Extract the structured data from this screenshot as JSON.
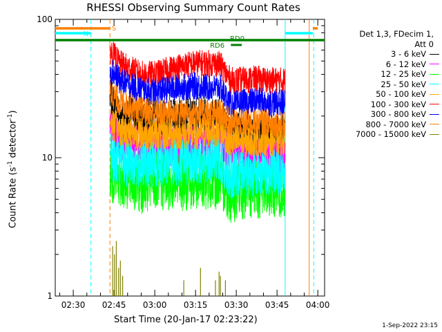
{
  "chart_data": {
    "type": "line",
    "title": "RHESSI Observing Summary Count Rates",
    "xlabel": "Start Time (20-Jan-17 02:23:22)",
    "ylabel_main": "Count Rate (s",
    "ylabel_sup1": "-1",
    "ylabel_mid": " detector",
    "ylabel_sup2": "-1",
    "ylabel_end": ")",
    "yscale": "log",
    "ylim": [
      1,
      100
    ],
    "xlim": [
      "02:23:22",
      "04:02:30"
    ],
    "x_ticks": [
      "02:30",
      "02:45",
      "03:00",
      "03:15",
      "03:30",
      "03:45",
      "04:00"
    ],
    "y_ticks": [
      "1",
      "10",
      "100"
    ],
    "grid": false,
    "legend_position": "right",
    "legend_header": [
      "Det 1,3, FDecim 1,",
      "Att 0"
    ],
    "series": [
      {
        "name": "3 - 6 keV",
        "color": "#000000",
        "values": [
          [
            "02:43:30",
            27
          ],
          [
            "02:47:00",
            21
          ],
          [
            "02:55:00",
            20
          ],
          [
            "03:05:00",
            19
          ],
          [
            "03:15:00",
            20
          ],
          [
            "03:24:00",
            20
          ],
          [
            "03:28:00",
            16
          ],
          [
            "03:38:00",
            15
          ],
          [
            "03:41:00",
            15
          ],
          [
            "03:48:00",
            15
          ]
        ]
      },
      {
        "name": "6 - 12 keV",
        "color": "#ff00ff",
        "values": [
          [
            "02:43:30",
            16
          ],
          [
            "02:47:00",
            13
          ],
          [
            "02:55:00",
            12.5
          ],
          [
            "03:05:00",
            12
          ],
          [
            "03:15:00",
            12.5
          ],
          [
            "03:24:00",
            13
          ],
          [
            "03:28:00",
            11
          ],
          [
            "03:38:00",
            10.5
          ],
          [
            "03:41:00",
            10.5
          ],
          [
            "03:48:00",
            10.5
          ]
        ]
      },
      {
        "name": "12 - 25 keV",
        "color": "#00ff00",
        "values": [
          [
            "02:43:30",
            8
          ],
          [
            "02:47:00",
            7
          ],
          [
            "02:55:00",
            6.5
          ],
          [
            "03:05:00",
            6.8
          ],
          [
            "03:15:00",
            6.8
          ],
          [
            "03:24:00",
            7
          ],
          [
            "03:28:00",
            5.5
          ],
          [
            "03:38:00",
            6
          ],
          [
            "03:41:00",
            6
          ],
          [
            "03:48:00",
            6
          ]
        ]
      },
      {
        "name": "25 - 50 keV",
        "color": "#00ffff",
        "values": [
          [
            "02:43:30",
            10.5
          ],
          [
            "02:47:00",
            9.5
          ],
          [
            "02:55:00",
            9
          ],
          [
            "03:05:00",
            9.5
          ],
          [
            "03:15:00",
            9.5
          ],
          [
            "03:24:00",
            10
          ],
          [
            "03:28:00",
            7.5
          ],
          [
            "03:38:00",
            8
          ],
          [
            "03:41:00",
            8
          ],
          [
            "03:48:00",
            8
          ]
        ]
      },
      {
        "name": "50 - 100 keV",
        "color": "#ffa500",
        "values": [
          [
            "02:43:30",
            18
          ],
          [
            "02:47:00",
            16
          ],
          [
            "02:55:00",
            15
          ],
          [
            "03:05:00",
            15
          ],
          [
            "03:15:00",
            15
          ],
          [
            "03:24:00",
            16
          ],
          [
            "03:28:00",
            13
          ],
          [
            "03:38:00",
            13.5
          ],
          [
            "03:41:00",
            13.5
          ],
          [
            "03:48:00",
            13.5
          ]
        ]
      },
      {
        "name": "100 - 300 keV",
        "color": "#ff0000",
        "values": [
          [
            "02:43:30",
            60
          ],
          [
            "02:47:00",
            48
          ],
          [
            "02:55:00",
            40
          ],
          [
            "03:00:00",
            40
          ],
          [
            "03:08:00",
            45
          ],
          [
            "03:15:00",
            48
          ],
          [
            "03:22:00",
            48
          ],
          [
            "03:24:00",
            47
          ],
          [
            "03:28:00",
            36
          ],
          [
            "03:38:00",
            37
          ],
          [
            "03:41:00",
            36
          ],
          [
            "03:48:00",
            36
          ]
        ]
      },
      {
        "name": "300 - 800 keV",
        "color": "#0000ff",
        "values": [
          [
            "02:43:30",
            44
          ],
          [
            "02:47:00",
            36
          ],
          [
            "02:55:00",
            31
          ],
          [
            "03:00:00",
            30
          ],
          [
            "03:08:00",
            32
          ],
          [
            "03:15:00",
            33
          ],
          [
            "03:22:00",
            32
          ],
          [
            "03:24:00",
            32
          ],
          [
            "03:28:00",
            24
          ],
          [
            "03:38:00",
            26
          ],
          [
            "03:41:00",
            25
          ],
          [
            "03:48:00",
            25
          ]
        ]
      },
      {
        "name": "800 - 7000 keV",
        "color": "#ff7f00",
        "values": [
          [
            "02:43:30",
            30
          ],
          [
            "02:47:00",
            25
          ],
          [
            "02:55:00",
            22
          ],
          [
            "03:00:00",
            21
          ],
          [
            "03:08:00",
            21
          ],
          [
            "03:15:00",
            21.5
          ],
          [
            "03:22:00",
            21
          ],
          [
            "03:24:00",
            21
          ],
          [
            "03:28:00",
            18
          ],
          [
            "03:38:00",
            18
          ],
          [
            "03:41:00",
            18
          ],
          [
            "03:48:00",
            17
          ]
        ]
      },
      {
        "name": "7000 - 15000 keV",
        "color": "#808000",
        "values": [
          [
            "02:43:30",
            1.0
          ],
          [
            "02:48:00",
            1.0
          ],
          [
            "03:48:00",
            1.0
          ]
        ]
      }
    ],
    "annotations": [
      {
        "text": "N",
        "color": "#00ffff"
      },
      {
        "text": "S",
        "color": "#ff7f00"
      },
      {
        "text": "RD0",
        "color": "#008000"
      },
      {
        "text": "RD6",
        "color": "#008000"
      }
    ],
    "flag_bars": [
      {
        "name": "night",
        "color": "#00ffff",
        "ranges": [
          [
            "02:23:22",
            "02:36:30"
          ],
          [
            "03:48:00",
            "03:58:10"
          ]
        ]
      },
      {
        "name": "saa",
        "color": "#ff7f00",
        "ranges": [
          [
            "02:23:22",
            "02:43:30"
          ],
          [
            "03:58:10",
            "04:00:00"
          ]
        ]
      },
      {
        "name": "decim",
        "color": "#008000",
        "ranges": [
          [
            "02:23:22",
            "04:02:30"
          ]
        ]
      },
      {
        "name": "rd0-flag",
        "color": "#008000",
        "ranges": [
          [
            "03:28:00",
            "03:32:00"
          ]
        ]
      }
    ],
    "vlines": [
      {
        "time": "02:36:30",
        "color": "#00ffff",
        "style": "dashed"
      },
      {
        "time": "02:43:30",
        "color": "#ff7f00",
        "style": "dashed"
      },
      {
        "time": "03:48:00",
        "color": "#00ffff",
        "style": "solid"
      },
      {
        "time": "03:56:50",
        "color": "#ff7f00",
        "style": "solid"
      },
      {
        "time": "03:58:30",
        "color": "#00ffff",
        "style": "dashed"
      }
    ]
  },
  "footer": {
    "timestamp": "1-Sep-2022 23:15"
  }
}
